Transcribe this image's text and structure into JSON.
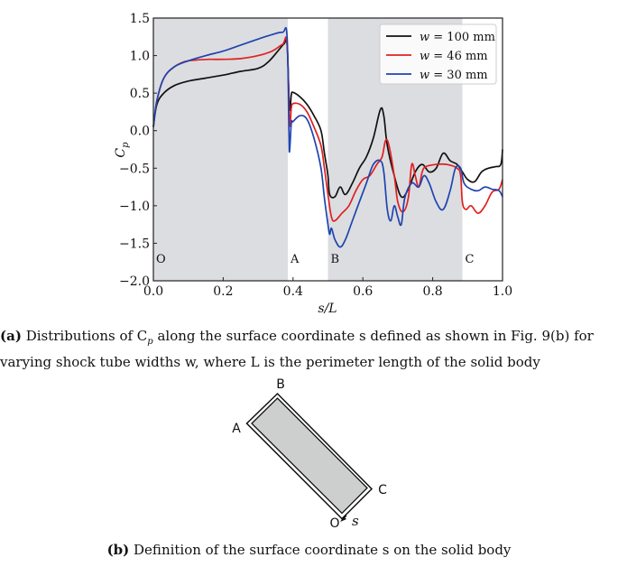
{
  "chart_data": {
    "type": "line",
    "title": "",
    "xlabel": "s/L",
    "ylabel": "C_p",
    "xlim": [
      0.0,
      1.0
    ],
    "ylim": [
      -2.0,
      1.5
    ],
    "xticks": [
      "0.0",
      "0.2",
      "0.4",
      "0.6",
      "0.8",
      "1.0"
    ],
    "yticks": [
      "−2.0",
      "−1.5",
      "−1.0",
      "−0.5",
      "0.0",
      "0.5",
      "1.0",
      "1.5"
    ],
    "grid": false,
    "legend_position": "upper right",
    "shaded_regions": [
      {
        "from": 0.0,
        "to": 0.385,
        "color": "#dcdde0"
      },
      {
        "from": 0.5,
        "to": 0.885,
        "color": "#dcdde0"
      }
    ],
    "region_labels": [
      {
        "label": "O",
        "x": 0.0
      },
      {
        "label": "A",
        "x": 0.385
      },
      {
        "label": "B",
        "x": 0.5
      },
      {
        "label": "C",
        "x": 0.885
      }
    ],
    "series": [
      {
        "name": "w = 100 mm",
        "color": "#111111",
        "points": [
          [
            0.0,
            0.05
          ],
          [
            0.01,
            0.35
          ],
          [
            0.03,
            0.5
          ],
          [
            0.06,
            0.6
          ],
          [
            0.1,
            0.66
          ],
          [
            0.15,
            0.7
          ],
          [
            0.2,
            0.74
          ],
          [
            0.25,
            0.79
          ],
          [
            0.3,
            0.83
          ],
          [
            0.33,
            0.92
          ],
          [
            0.36,
            1.08
          ],
          [
            0.375,
            1.16
          ],
          [
            0.383,
            1.15
          ],
          [
            0.39,
            0.3
          ],
          [
            0.395,
            0.48
          ],
          [
            0.4,
            0.51
          ],
          [
            0.42,
            0.45
          ],
          [
            0.44,
            0.35
          ],
          [
            0.46,
            0.2
          ],
          [
            0.48,
            0.0
          ],
          [
            0.49,
            -0.3
          ],
          [
            0.5,
            -0.6
          ],
          [
            0.505,
            -0.85
          ],
          [
            0.52,
            -0.88
          ],
          [
            0.535,
            -0.75
          ],
          [
            0.55,
            -0.85
          ],
          [
            0.57,
            -0.7
          ],
          [
            0.59,
            -0.5
          ],
          [
            0.61,
            -0.35
          ],
          [
            0.63,
            -0.1
          ],
          [
            0.65,
            0.28
          ],
          [
            0.66,
            0.2
          ],
          [
            0.67,
            -0.2
          ],
          [
            0.69,
            -0.6
          ],
          [
            0.71,
            -0.88
          ],
          [
            0.73,
            -0.78
          ],
          [
            0.75,
            -0.55
          ],
          [
            0.77,
            -0.45
          ],
          [
            0.79,
            -0.55
          ],
          [
            0.81,
            -0.5
          ],
          [
            0.83,
            -0.3
          ],
          [
            0.85,
            -0.4
          ],
          [
            0.87,
            -0.45
          ],
          [
            0.885,
            -0.55
          ],
          [
            0.9,
            -0.65
          ],
          [
            0.92,
            -0.68
          ],
          [
            0.94,
            -0.55
          ],
          [
            0.96,
            -0.5
          ],
          [
            0.98,
            -0.48
          ],
          [
            0.995,
            -0.45
          ],
          [
            1.0,
            -0.25
          ]
        ]
      },
      {
        "name": "w = 46 mm",
        "color": "#e02020",
        "points": [
          [
            0.0,
            0.05
          ],
          [
            0.01,
            0.4
          ],
          [
            0.03,
            0.7
          ],
          [
            0.06,
            0.85
          ],
          [
            0.09,
            0.92
          ],
          [
            0.12,
            0.94
          ],
          [
            0.16,
            0.95
          ],
          [
            0.2,
            0.95
          ],
          [
            0.25,
            0.96
          ],
          [
            0.3,
            1.0
          ],
          [
            0.34,
            1.06
          ],
          [
            0.37,
            1.15
          ],
          [
            0.383,
            1.16
          ],
          [
            0.39,
            0.1
          ],
          [
            0.395,
            0.3
          ],
          [
            0.4,
            0.36
          ],
          [
            0.42,
            0.35
          ],
          [
            0.44,
            0.25
          ],
          [
            0.46,
            0.05
          ],
          [
            0.48,
            -0.2
          ],
          [
            0.49,
            -0.5
          ],
          [
            0.5,
            -0.85
          ],
          [
            0.51,
            -1.15
          ],
          [
            0.52,
            -1.2
          ],
          [
            0.54,
            -1.1
          ],
          [
            0.56,
            -1.0
          ],
          [
            0.58,
            -0.8
          ],
          [
            0.6,
            -0.65
          ],
          [
            0.62,
            -0.6
          ],
          [
            0.64,
            -0.45
          ],
          [
            0.655,
            -0.35
          ],
          [
            0.665,
            -0.13
          ],
          [
            0.675,
            -0.2
          ],
          [
            0.69,
            -0.6
          ],
          [
            0.7,
            -0.95
          ],
          [
            0.715,
            -1.08
          ],
          [
            0.73,
            -0.9
          ],
          [
            0.74,
            -0.45
          ],
          [
            0.75,
            -0.6
          ],
          [
            0.76,
            -0.75
          ],
          [
            0.77,
            -0.55
          ],
          [
            0.78,
            -0.48
          ],
          [
            0.81,
            -0.45
          ],
          [
            0.84,
            -0.45
          ],
          [
            0.87,
            -0.5
          ],
          [
            0.88,
            -0.6
          ],
          [
            0.885,
            -0.95
          ],
          [
            0.895,
            -1.05
          ],
          [
            0.91,
            -1.0
          ],
          [
            0.93,
            -1.1
          ],
          [
            0.95,
            -1.0
          ],
          [
            0.97,
            -0.82
          ],
          [
            0.99,
            -0.78
          ],
          [
            1.0,
            -0.65
          ]
        ]
      },
      {
        "name": "w = 30 mm",
        "color": "#1f44b0",
        "points": [
          [
            0.0,
            0.05
          ],
          [
            0.01,
            0.4
          ],
          [
            0.03,
            0.7
          ],
          [
            0.06,
            0.85
          ],
          [
            0.1,
            0.93
          ],
          [
            0.15,
            1.0
          ],
          [
            0.2,
            1.06
          ],
          [
            0.25,
            1.14
          ],
          [
            0.3,
            1.22
          ],
          [
            0.34,
            1.28
          ],
          [
            0.37,
            1.31
          ],
          [
            0.383,
            1.25
          ],
          [
            0.388,
            0.0
          ],
          [
            0.39,
            -0.28
          ],
          [
            0.395,
            0.1
          ],
          [
            0.4,
            0.12
          ],
          [
            0.42,
            0.2
          ],
          [
            0.44,
            0.15
          ],
          [
            0.46,
            -0.1
          ],
          [
            0.48,
            -0.5
          ],
          [
            0.49,
            -0.9
          ],
          [
            0.5,
            -1.25
          ],
          [
            0.505,
            -1.38
          ],
          [
            0.51,
            -1.3
          ],
          [
            0.52,
            -1.45
          ],
          [
            0.535,
            -1.55
          ],
          [
            0.55,
            -1.45
          ],
          [
            0.57,
            -1.2
          ],
          [
            0.59,
            -0.95
          ],
          [
            0.61,
            -0.7
          ],
          [
            0.63,
            -0.45
          ],
          [
            0.65,
            -0.4
          ],
          [
            0.66,
            -0.55
          ],
          [
            0.67,
            -1.05
          ],
          [
            0.68,
            -1.2
          ],
          [
            0.69,
            -1.0
          ],
          [
            0.7,
            -1.15
          ],
          [
            0.71,
            -1.25
          ],
          [
            0.72,
            -0.9
          ],
          [
            0.74,
            -0.7
          ],
          [
            0.76,
            -0.75
          ],
          [
            0.775,
            -0.6
          ],
          [
            0.79,
            -0.7
          ],
          [
            0.81,
            -0.95
          ],
          [
            0.83,
            -1.05
          ],
          [
            0.85,
            -0.8
          ],
          [
            0.865,
            -0.5
          ],
          [
            0.88,
            -0.5
          ],
          [
            0.89,
            -0.7
          ],
          [
            0.91,
            -0.78
          ],
          [
            0.93,
            -0.8
          ],
          [
            0.95,
            -0.75
          ],
          [
            0.97,
            -0.78
          ],
          [
            0.99,
            -0.8
          ],
          [
            1.0,
            -0.88
          ]
        ]
      }
    ]
  },
  "figure": {
    "panel_a": {
      "legend": [
        {
          "var": "w",
          "rest": " = 100 mm",
          "color": "#111111"
        },
        {
          "var": "w",
          "rest": " = 46 mm",
          "color": "#e02020"
        },
        {
          "var": "w",
          "rest": " = 30 mm",
          "color": "#1f44b0"
        }
      ],
      "ylabel_main": "C",
      "ylabel_sub": "p",
      "xlabel": "s/L",
      "caption_label": "(a)",
      "caption_text": " Distributions of C",
      "caption_sub": "p",
      "caption_rest": " along the surface coordinate s defined as shown in Fig. 9(b) for varying shock tube widths w, where L is the perimeter length of the solid body"
    },
    "panel_b": {
      "corner_labels": {
        "A": "A",
        "B": "B",
        "C": "C",
        "O": "O"
      },
      "arrow_label": "s",
      "caption_label": "(b)",
      "caption_text": " Definition of the surface coordinate s on the solid body"
    }
  }
}
